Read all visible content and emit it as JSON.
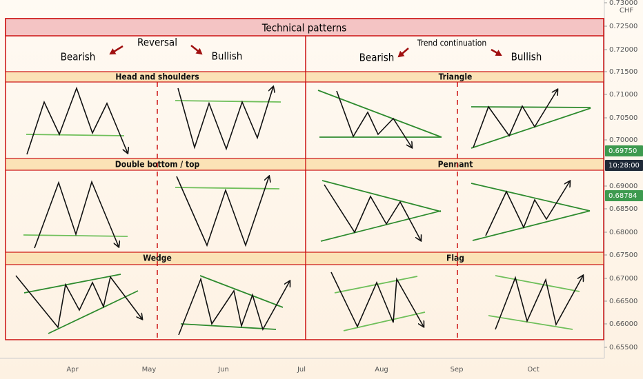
{
  "header": {
    "title": "Technical patterns",
    "reversal": {
      "title": "Reversal",
      "bearish": "Bearish",
      "bullish": "Bullish"
    },
    "continuation": {
      "title": "Trend continuation",
      "bearish": "Bearish",
      "bullish": "Bullish"
    }
  },
  "sections": [
    "Head and shoulders",
    "Triangle",
    "Double bottom / top",
    "Pennant",
    "Wedge",
    "Flag"
  ],
  "price_axis": {
    "currency": "CHF",
    "labels": [
      "0.73000",
      "0.72500",
      "0.72000",
      "0.71500",
      "0.71000",
      "0.70500",
      "0.70000",
      "0.69000",
      "0.68500",
      "0.68000",
      "0.67500",
      "0.67000",
      "0.66500",
      "0.66000",
      "0.65500"
    ],
    "highlights": [
      "0.69750",
      "10:28:00",
      "0.68784"
    ]
  },
  "time_axis": [
    "Apr",
    "May",
    "Jun",
    "Jul",
    "Aug",
    "Sep",
    "Oct"
  ]
}
